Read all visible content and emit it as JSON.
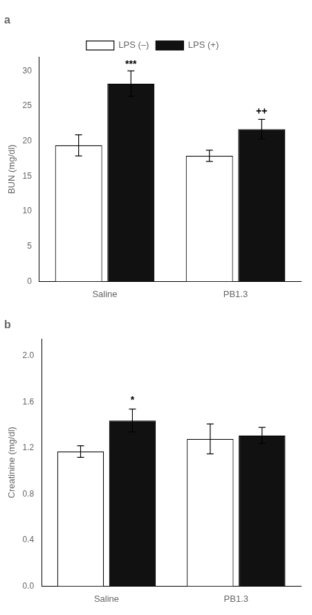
{
  "chart_data": [
    {
      "type": "bar",
      "title": "a",
      "ylabel": "BUN (mg/dl)",
      "categories": [
        "Saline",
        "PB1.3"
      ],
      "series": [
        {
          "name": "LPS (–)",
          "color": "#ffffff",
          "values": [
            19.4,
            17.9
          ],
          "errors": [
            1.5,
            0.8
          ]
        },
        {
          "name": "LPS (+)",
          "color": "#111111",
          "values": [
            28.2,
            21.7
          ],
          "errors": [
            1.8,
            1.4
          ]
        }
      ],
      "ylim": [
        0,
        32
      ],
      "yticks": [
        0,
        5,
        10,
        15,
        20,
        25,
        30
      ],
      "annotations": [
        {
          "text": "***",
          "category": "Saline",
          "series": "LPS (+)",
          "y": 30.2
        },
        {
          "text": "++",
          "category": "PB1.3",
          "series": "LPS (+)",
          "y": 23.5
        }
      ],
      "grid": false,
      "legend": "top"
    },
    {
      "type": "bar",
      "title": "b",
      "ylabel": "Creatinine (mg/dl)",
      "categories": [
        "Saline",
        "PB1.3"
      ],
      "series": [
        {
          "name": "LPS (–)",
          "color": "#ffffff",
          "values": [
            1.17,
            1.28
          ],
          "errors": [
            0.05,
            0.13
          ]
        },
        {
          "name": "LPS (+)",
          "color": "#111111",
          "values": [
            1.44,
            1.31
          ],
          "errors": [
            0.1,
            0.07
          ]
        }
      ],
      "ylim": [
        0,
        2.15
      ],
      "yticks": [
        {
          "value": 0,
          "label": "0.0"
        },
        0.4,
        0.8,
        1.2,
        1.6,
        {
          "value": 2,
          "label": "2.0"
        }
      ],
      "annotations": [
        {
          "text": "*",
          "category": "Saline",
          "series": "LPS (+)",
          "y": 1.57
        }
      ],
      "grid": false
    }
  ]
}
